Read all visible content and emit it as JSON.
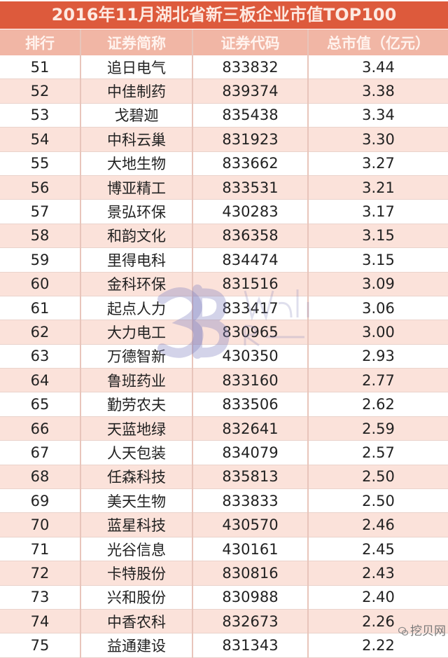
{
  "title": "2016年11月湖北省新三板企业市值TOP100",
  "columns": [
    "排行",
    "证券简称",
    "证券代码",
    "总市值（亿元）"
  ],
  "rows": [
    [
      "51",
      "追日电气",
      "833832",
      "3.44"
    ],
    [
      "52",
      "中佳制药",
      "839374",
      "3.38"
    ],
    [
      "53",
      "戈碧迦",
      "835438",
      "3.34"
    ],
    [
      "54",
      "中科云巢",
      "831923",
      "3.30"
    ],
    [
      "55",
      "大地生物",
      "833662",
      "3.27"
    ],
    [
      "56",
      "博亚精工",
      "833531",
      "3.21"
    ],
    [
      "57",
      "景弘环保",
      "430283",
      "3.17"
    ],
    [
      "58",
      "和韵文化",
      "836358",
      "3.15"
    ],
    [
      "59",
      "里得电科",
      "834474",
      "3.15"
    ],
    [
      "60",
      "金科环保",
      "831516",
      "3.09"
    ],
    [
      "61",
      "起点人力",
      "833417",
      "3.06"
    ],
    [
      "62",
      "大力电工",
      "830965",
      "3.00"
    ],
    [
      "63",
      "万德智新",
      "430350",
      "2.93"
    ],
    [
      "64",
      "鲁班药业",
      "833160",
      "2.77"
    ],
    [
      "65",
      "勤劳农夫",
      "833506",
      "2.62"
    ],
    [
      "66",
      "天蓝地绿",
      "832641",
      "2.59"
    ],
    [
      "67",
      "人天包装",
      "834079",
      "2.57"
    ],
    [
      "68",
      "任森科技",
      "835813",
      "2.50"
    ],
    [
      "69",
      "美天生物",
      "833833",
      "2.50"
    ],
    [
      "70",
      "蓝星科技",
      "430570",
      "2.46"
    ],
    [
      "71",
      "光谷信息",
      "430161",
      "2.45"
    ],
    [
      "72",
      "卡特股份",
      "830816",
      "2.43"
    ],
    [
      "73",
      "兴和股份",
      "830988",
      "2.40"
    ],
    [
      "74",
      "中香农科",
      "832673",
      "2.26"
    ],
    [
      "75",
      "益通建设",
      "831343",
      "2.22"
    ]
  ],
  "watermark": {
    "mark": "3B",
    "line1": "Waibei",
    "line2": "Research",
    "line3": "挖贝新三板研究院"
  },
  "footer_logo": {
    "icon": "wechat-icon",
    "text": "挖贝网"
  },
  "colors": {
    "title_bg": "#dd5a3c",
    "header_bg": "#f1b6a5",
    "alt_row": "#fbe2da"
  }
}
